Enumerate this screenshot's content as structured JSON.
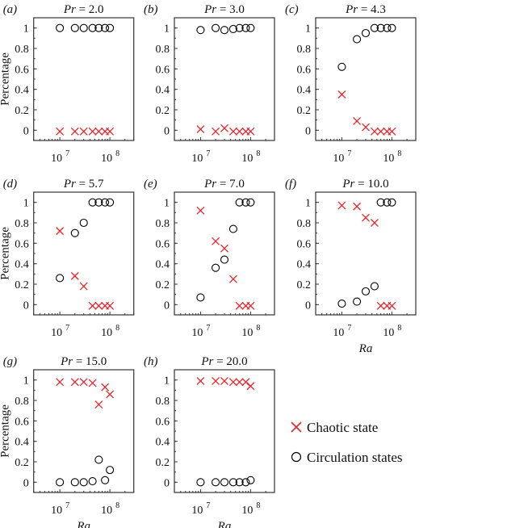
{
  "chart_data": [
    {
      "type": "scatter",
      "panel": "(a)",
      "title": "Pr = 2.0",
      "title_var": "Pr",
      "title_value": "2.0",
      "xlabel": "",
      "ylabel": "Percentage",
      "x": [
        10000000.0,
        20000000.0,
        30000000.0,
        45000000.0,
        60000000.0,
        80000000.0,
        100000000.0
      ],
      "series": [
        {
          "name": "Chaotic state",
          "values": [
            0,
            0,
            0,
            0,
            0,
            0,
            0
          ]
        },
        {
          "name": "Circulation states",
          "values": [
            1,
            1,
            1,
            1,
            1,
            1,
            1
          ]
        }
      ]
    },
    {
      "type": "scatter",
      "panel": "(b)",
      "title": "Pr = 3.0",
      "title_var": "Pr",
      "title_value": "3.0",
      "xlabel": "",
      "ylabel": "",
      "x": [
        10000000.0,
        20000000.0,
        30000000.0,
        45000000.0,
        60000000.0,
        80000000.0,
        100000000.0
      ],
      "series": [
        {
          "name": "Chaotic state",
          "values": [
            0.01,
            0,
            0.02,
            0,
            0,
            0,
            0
          ]
        },
        {
          "name": "Circulation states",
          "values": [
            0.98,
            1,
            0.98,
            0.99,
            1,
            1,
            1
          ]
        }
      ]
    },
    {
      "type": "scatter",
      "panel": "(c)",
      "title": "Pr = 4.3",
      "title_var": "Pr",
      "title_value": "4.3",
      "xlabel": "",
      "ylabel": "",
      "x": [
        10000000.0,
        20000000.0,
        30000000.0,
        45000000.0,
        60000000.0,
        80000000.0,
        100000000.0
      ],
      "series": [
        {
          "name": "Chaotic state",
          "values": [
            0.35,
            0.09,
            0.03,
            0,
            0,
            0,
            0
          ]
        },
        {
          "name": "Circulation states",
          "values": [
            0.62,
            0.89,
            0.95,
            1,
            1,
            1,
            1
          ]
        }
      ]
    },
    {
      "type": "scatter",
      "panel": "(d)",
      "title": "Pr = 5.7",
      "title_var": "Pr",
      "title_value": "5.7",
      "xlabel": "",
      "ylabel": "Percentage",
      "x": [
        10000000.0,
        20000000.0,
        30000000.0,
        45000000.0,
        60000000.0,
        80000000.0,
        100000000.0
      ],
      "series": [
        {
          "name": "Chaotic state",
          "values": [
            0.72,
            0.28,
            0.18,
            0,
            0,
            0,
            0
          ]
        },
        {
          "name": "Circulation states",
          "values": [
            0.26,
            0.7,
            0.8,
            1,
            1,
            1,
            1
          ]
        }
      ]
    },
    {
      "type": "scatter",
      "panel": "(e)",
      "title": "Pr = 7.0",
      "title_var": "Pr",
      "title_value": "7.0",
      "xlabel": "",
      "ylabel": "",
      "x": [
        10000000.0,
        20000000.0,
        30000000.0,
        45000000.0,
        60000000.0,
        80000000.0,
        100000000.0
      ],
      "series": [
        {
          "name": "Chaotic state",
          "values": [
            0.92,
            0.62,
            0.55,
            0.25,
            0,
            0,
            0
          ]
        },
        {
          "name": "Circulation states",
          "values": [
            0.07,
            0.36,
            0.44,
            0.74,
            1,
            1,
            1
          ]
        }
      ]
    },
    {
      "type": "scatter",
      "panel": "(f)",
      "title": "Pr = 10.0",
      "title_var": "Pr",
      "title_value": "10.0",
      "xlabel": "Ra",
      "ylabel": "",
      "x": [
        10000000.0,
        20000000.0,
        30000000.0,
        45000000.0,
        60000000.0,
        80000000.0,
        100000000.0
      ],
      "series": [
        {
          "name": "Chaotic state",
          "values": [
            0.97,
            0.96,
            0.85,
            0.8,
            0,
            0,
            0
          ]
        },
        {
          "name": "Circulation states",
          "values": [
            0.01,
            0.03,
            0.13,
            0.18,
            1,
            1,
            1
          ]
        }
      ]
    },
    {
      "type": "scatter",
      "panel": "(g)",
      "title": "Pr = 15.0",
      "title_var": "Pr",
      "title_value": "15.0",
      "xlabel": "Ra",
      "ylabel": "Percentage",
      "x": [
        10000000.0,
        20000000.0,
        30000000.0,
        45000000.0,
        60000000.0,
        80000000.0,
        100000000.0
      ],
      "series": [
        {
          "name": "Chaotic state",
          "values": [
            0.98,
            0.98,
            0.98,
            0.97,
            0.76,
            0.93,
            0.86
          ]
        },
        {
          "name": "Circulation states",
          "values": [
            0,
            0,
            0,
            0.01,
            0.22,
            0.02,
            0.12
          ]
        }
      ]
    },
    {
      "type": "scatter",
      "panel": "(h)",
      "title": "Pr = 20.0",
      "title_var": "Pr",
      "title_value": "20.0",
      "xlabel": "Ra",
      "ylabel": "",
      "x": [
        10000000.0,
        20000000.0,
        30000000.0,
        45000000.0,
        60000000.0,
        80000000.0,
        100000000.0
      ],
      "series": [
        {
          "name": "Chaotic state",
          "values": [
            0.99,
            0.99,
            0.99,
            0.98,
            0.98,
            0.98,
            0.94
          ]
        },
        {
          "name": "Circulation states",
          "values": [
            0,
            0,
            0,
            0,
            0,
            0,
            0.02
          ]
        }
      ]
    }
  ],
  "axes": {
    "xscale": "log",
    "xlim": [
      3000000.0,
      300000000.0
    ],
    "ylim": [
      -0.1,
      1.1
    ],
    "xticks": [
      10000000.0,
      100000000.0
    ],
    "xtick_labels": [
      "10",
      "10"
    ],
    "xtick_exponents": [
      "7",
      "8"
    ],
    "yticks": [
      0,
      0.2,
      0.4,
      0.6,
      0.8,
      1
    ],
    "ytick_labels": [
      "0",
      "0.2",
      "0.4",
      "0.6",
      "0.8",
      "1"
    ],
    "grid": false
  },
  "legend": {
    "placement": "bottom-right",
    "items": [
      {
        "label": "Chaotic state",
        "marker": "x",
        "color": "#e8242b"
      },
      {
        "label": "Circulation states",
        "marker": "circle",
        "color": "#000000"
      }
    ]
  },
  "colors": {
    "chaotic": "#e8242b",
    "circulation": "#000000"
  }
}
